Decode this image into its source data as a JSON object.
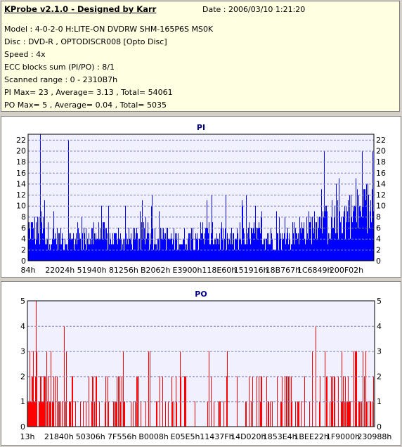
{
  "header": {
    "title": "KProbe v2.1.0 - Designed by Karr",
    "date": "Date : 2006/03/10 1:21:20",
    "lines": [
      "Model : 4-0-2-0 H:LITE-ON DVDRW SHM-165P6S MS0K",
      "Disc : DVD-R , OPTODISCR008 [Opto Disc]",
      "Speed : 4x",
      "ECC blocks sum (PI/PO) : 8/1",
      "Scanned range : 0 - 2310B7h",
      "PI Max= 23 , Average= 3.13 , Total= 54061",
      "PO Max= 5 , Average= 0.04 , Total= 5035"
    ]
  },
  "colors": {
    "pi_bars": "#0000ff",
    "po_bars": "#ff0000",
    "plot_bg": "#f0f0ff",
    "grid": "#8080c0",
    "title": "#000080"
  },
  "chart_data": [
    {
      "type": "bar",
      "title": "PI",
      "ylim": [
        0,
        23
      ],
      "yticks": [
        0,
        2,
        4,
        6,
        8,
        10,
        12,
        14,
        16,
        18,
        20,
        22
      ],
      "xlim": [
        132,
        2297015
      ],
      "xtick_labels": [
        "84h",
        "22024h",
        "51940h",
        "81256h",
        "B2062h",
        "E3900h",
        "118E60h",
        "151916h",
        "18B767h",
        "1C6849h",
        "200F02h"
      ],
      "grid": true,
      "max": 23,
      "average": 3.13,
      "total": 54061
    },
    {
      "type": "bar",
      "title": "PO",
      "ylim": [
        0,
        5
      ],
      "yticks": [
        0,
        1,
        2,
        3,
        4,
        5
      ],
      "xlim": [
        19,
        2296206
      ],
      "xtick_labels": [
        "13h",
        "21840h",
        "50306h",
        "7F556h",
        "B0008h",
        "E05E5h",
        "11437Fh",
        "14D020h",
        "1853E4h",
        "1BEE22h",
        "1F9000h",
        "230988h"
      ],
      "grid": true,
      "max": 5,
      "average": 0.04,
      "total": 5035
    }
  ]
}
